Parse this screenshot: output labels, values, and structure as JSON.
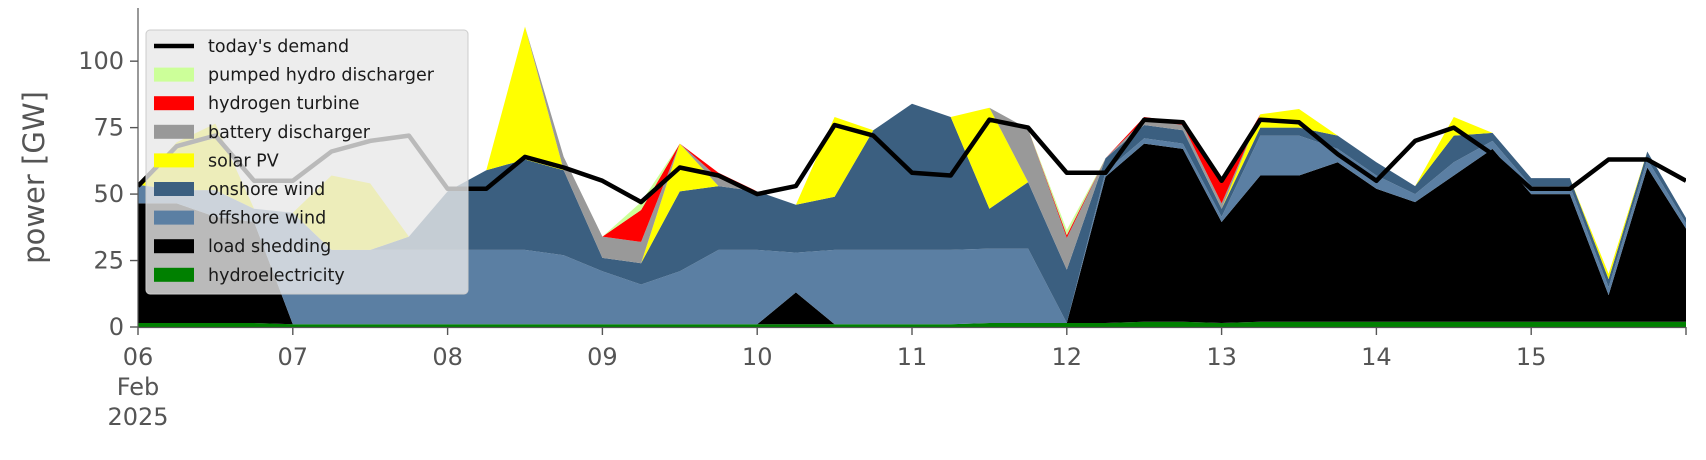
{
  "chart_data": {
    "type": "area",
    "stacked": true,
    "ylabel": "power [GW]",
    "xlabel": "",
    "ylim": [
      0,
      120
    ],
    "y_ticks": [
      0,
      25,
      50,
      75,
      100
    ],
    "x_range": [
      "2025-02-06T00:00",
      "2025-02-16T00:00"
    ],
    "x_ticks": [
      {
        "date": "2025-02-06",
        "lines": [
          "06",
          "Feb",
          "2025"
        ]
      },
      {
        "date": "2025-02-07",
        "lines": [
          "07"
        ]
      },
      {
        "date": "2025-02-08",
        "lines": [
          "08"
        ]
      },
      {
        "date": "2025-02-09",
        "lines": [
          "09"
        ]
      },
      {
        "date": "2025-02-10",
        "lines": [
          "10"
        ]
      },
      {
        "date": "2025-02-11",
        "lines": [
          "11"
        ]
      },
      {
        "date": "2025-02-12",
        "lines": [
          "12"
        ]
      },
      {
        "date": "2025-02-13",
        "lines": [
          "13"
        ]
      },
      {
        "date": "2025-02-14",
        "lines": [
          "14"
        ]
      },
      {
        "date": "2025-02-15",
        "lines": [
          "15"
        ]
      }
    ],
    "grid": false,
    "legend_position": "upper-left",
    "x": [
      "2025-02-06T00:00",
      "2025-02-06T06:00",
      "2025-02-06T12:00",
      "2025-02-06T18:00",
      "2025-02-07T00:00",
      "2025-02-07T06:00",
      "2025-02-07T12:00",
      "2025-02-07T18:00",
      "2025-02-08T00:00",
      "2025-02-08T06:00",
      "2025-02-08T12:00",
      "2025-02-08T18:00",
      "2025-02-09T00:00",
      "2025-02-09T06:00",
      "2025-02-09T12:00",
      "2025-02-09T18:00",
      "2025-02-10T00:00",
      "2025-02-10T06:00",
      "2025-02-10T12:00",
      "2025-02-10T18:00",
      "2025-02-11T00:00",
      "2025-02-11T06:00",
      "2025-02-11T12:00",
      "2025-02-11T18:00",
      "2025-02-12T00:00",
      "2025-02-12T06:00",
      "2025-02-12T12:00",
      "2025-02-12T18:00",
      "2025-02-13T00:00",
      "2025-02-13T06:00",
      "2025-02-13T12:00",
      "2025-02-13T18:00",
      "2025-02-14T00:00",
      "2025-02-14T06:00",
      "2025-02-14T12:00",
      "2025-02-14T18:00",
      "2025-02-15T00:00",
      "2025-02-15T06:00",
      "2025-02-15T12:00",
      "2025-02-15T18:00",
      "2025-02-16T00:00"
    ],
    "series": [
      {
        "name": "hydroelectricity",
        "color": "#008000",
        "values": [
          1.5,
          1.5,
          1.5,
          1.5,
          1,
          1,
          1,
          1,
          1,
          1,
          1,
          1,
          1,
          1,
          1,
          1,
          1,
          1,
          1,
          1,
          1,
          1,
          1.5,
          1.5,
          1.5,
          1.5,
          2,
          2,
          1.5,
          2,
          2,
          2,
          2,
          2,
          2,
          2,
          2,
          2,
          2,
          2,
          2
        ]
      },
      {
        "name": "load shedding",
        "color": "#000000",
        "values": [
          45,
          45,
          40,
          38,
          0,
          0,
          0,
          0,
          0,
          0,
          0,
          0,
          0,
          0,
          0,
          0,
          0,
          12,
          0,
          0,
          0,
          0,
          0,
          0,
          0,
          55,
          67,
          65,
          38,
          55,
          55,
          60,
          50,
          45,
          55,
          65,
          48,
          48,
          10,
          58,
          35
        ]
      },
      {
        "name": "offshore wind",
        "color": "#5b7fa3",
        "values": [
          7,
          5,
          10,
          5,
          42,
          28,
          28,
          28,
          28,
          28,
          28,
          26,
          20,
          15,
          20,
          28,
          28,
          15,
          28,
          28,
          28,
          28,
          28,
          28,
          0,
          2,
          2,
          2,
          2,
          15,
          15,
          5,
          5,
          3,
          5,
          3,
          3,
          3,
          3,
          3,
          2
        ]
      },
      {
        "name": "onshore wind",
        "color": "#3b5f80",
        "values": [
          0,
          0,
          0,
          0,
          0,
          0,
          0,
          5,
          22,
          30,
          34,
          32,
          5,
          8,
          30,
          24,
          22,
          18,
          20,
          45,
          55,
          50,
          15,
          25,
          20,
          5,
          5,
          5,
          3,
          3,
          3,
          5,
          5,
          3,
          10,
          3,
          3,
          3,
          3,
          3,
          2
        ]
      },
      {
        "name": "solar PV",
        "color": "#ffff00",
        "values": [
          0,
          18,
          25,
          0,
          0,
          28,
          25,
          0,
          0,
          0,
          50,
          0,
          0,
          0,
          18,
          0,
          0,
          0,
          30,
          0,
          0,
          0,
          38,
          0,
          0,
          0,
          0,
          0,
          0,
          5,
          7,
          0,
          0,
          0,
          7,
          0,
          0,
          0,
          2,
          0,
          0
        ]
      },
      {
        "name": "battery discharger",
        "color": "#999999",
        "values": [
          0,
          0,
          0,
          0,
          0,
          0,
          0,
          0,
          0,
          0,
          0,
          5,
          8,
          8,
          0,
          3,
          0,
          0,
          0,
          0,
          0,
          0,
          0,
          20,
          12,
          0,
          2,
          2,
          2,
          0,
          0,
          0,
          0,
          0,
          0,
          0,
          0,
          0,
          0,
          0,
          0
        ]
      },
      {
        "name": "hydrogen turbine",
        "color": "#ff0000",
        "values": [
          0,
          0,
          0,
          0,
          0,
          0,
          0,
          0,
          0,
          0,
          0,
          0,
          0,
          12,
          0,
          2,
          0,
          0,
          0,
          0,
          0,
          0,
          0,
          0,
          1,
          0,
          1,
          1,
          8,
          0,
          0,
          0,
          0,
          0,
          0,
          0,
          0,
          0,
          0,
          0,
          0
        ]
      },
      {
        "name": "pumped hydro discharger",
        "color": "#ccff99",
        "values": [
          0,
          0,
          0,
          0,
          0,
          0,
          0,
          0,
          0,
          0,
          0,
          0,
          0,
          3,
          0,
          0,
          0,
          0,
          0,
          0,
          0,
          0,
          0,
          0,
          2,
          0,
          0,
          0,
          0,
          0,
          0,
          0,
          0,
          0,
          0,
          0,
          0,
          0,
          0,
          0,
          0
        ]
      }
    ],
    "demand": {
      "name": "today's demand",
      "color": "#000000",
      "values": [
        53,
        68,
        72,
        55,
        55,
        66,
        70,
        72,
        52,
        52,
        64,
        60,
        55,
        47,
        60,
        57,
        50,
        53,
        76,
        72,
        58,
        57,
        78,
        75,
        58,
        58,
        78,
        77,
        55,
        78,
        77,
        65,
        55,
        70,
        75,
        65,
        52,
        52,
        63,
        63,
        55
      ]
    },
    "legend": [
      {
        "label": "today's demand",
        "color": "#000000",
        "kind": "line"
      },
      {
        "label": "pumped hydro discharger",
        "color": "#ccff99",
        "kind": "patch"
      },
      {
        "label": "hydrogen turbine",
        "color": "#ff0000",
        "kind": "patch"
      },
      {
        "label": "battery discharger",
        "color": "#999999",
        "kind": "patch"
      },
      {
        "label": "solar PV",
        "color": "#ffff00",
        "kind": "patch"
      },
      {
        "label": "onshore wind",
        "color": "#3b5f80",
        "kind": "patch"
      },
      {
        "label": "offshore wind",
        "color": "#5b7fa3",
        "kind": "patch"
      },
      {
        "label": "load shedding",
        "color": "#000000",
        "kind": "patch"
      },
      {
        "label": "hydroelectricity",
        "color": "#008000",
        "kind": "patch"
      }
    ]
  }
}
